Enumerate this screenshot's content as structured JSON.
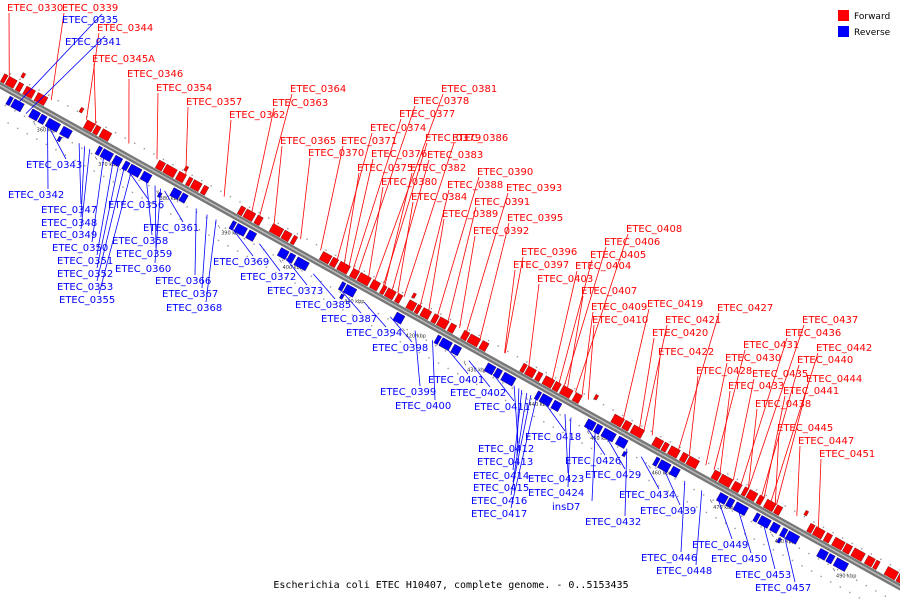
{
  "caption": "Escherichia coli ETEC H10407, complete genome. - 0..5153435",
  "legend": [
    {
      "label": "Forward",
      "color": "#ff0000"
    },
    {
      "label": "Reverse",
      "color": "#0000ff"
    }
  ],
  "colors": {
    "forward": "#ff0000",
    "reverse": "#0000ff",
    "backbone": "#555555"
  },
  "ticks": [
    "360 kbp",
    "370 kbp",
    "380 kbp",
    "390 kbp",
    "400 kbp",
    "410 kbp",
    "420 kbp",
    "430 kbp",
    "440 kbp",
    "450 kbp",
    "460 kbp",
    "470 kbp",
    "480 kbp",
    "490 kbp"
  ],
  "forward_genes": [
    "ETEC_0330",
    "ETEC_0339",
    "ETEC_0344",
    "ETEC_0345A",
    "ETEC_0346",
    "ETEC_0354",
    "ETEC_0357",
    "ETEC_0364",
    "ETEC_0363",
    "ETEC_0362",
    "ETEC_0381",
    "ETEC_0378",
    "ETEC_0377",
    "ETEC_0374",
    "ETEC_0371",
    "ETEC_0379",
    "ETEC_0386",
    "ETEC_0365",
    "ETEC_0370",
    "ETEC_0376",
    "ETEC_0383",
    "ETEC_0375",
    "ETEC_0382",
    "ETEC_0390",
    "ETEC_0380",
    "ETEC_0388",
    "ETEC_0393",
    "ETEC_0384",
    "ETEC_0391",
    "ETEC_0389",
    "ETEC_0395",
    "ETEC_0392",
    "ETEC_0408",
    "ETEC_0406",
    "ETEC_0405",
    "ETEC_0396",
    "ETEC_0397",
    "ETEC_0404",
    "ETEC_0403",
    "ETEC_0407",
    "ETEC_0409",
    "ETEC_0419",
    "ETEC_0427",
    "ETEC_0410",
    "ETEC_0421",
    "ETEC_0437",
    "ETEC_0420",
    "ETEC_0436",
    "ETEC_0431",
    "ETEC_0442",
    "ETEC_0422",
    "ETEC_0430",
    "ETEC_0440",
    "ETEC_0428",
    "ETEC_0435",
    "ETEC_0444",
    "ETEC_0433",
    "ETEC_0441",
    "ETEC_0438",
    "ETEC_0445",
    "ETEC_0447",
    "ETEC_0451"
  ],
  "reverse_genes": [
    "ETEC_0335",
    "ETEC_0341",
    "ETEC_0343",
    "ETEC_0342",
    "ETEC_0347",
    "ETEC_0356",
    "ETEC_0348",
    "ETEC_0349",
    "ETEC_0361",
    "ETEC_0358",
    "ETEC_0350",
    "ETEC_0359",
    "ETEC_0351",
    "ETEC_0360",
    "ETEC_0369",
    "ETEC_0352",
    "ETEC_0366",
    "ETEC_0353",
    "ETEC_0372",
    "ETEC_0367",
    "ETEC_0355",
    "ETEC_0373",
    "ETEC_0368",
    "ETEC_0385",
    "ETEC_0387",
    "ETEC_0394",
    "ETEC_0398",
    "ETEC_0401",
    "ETEC_0399",
    "ETEC_0402",
    "ETEC_0400",
    "ETEC_0411",
    "ETEC_0418",
    "ETEC_0412",
    "ETEC_0426",
    "ETEC_0413",
    "ETEC_0414",
    "ETEC_0423",
    "ETEC_0429",
    "ETEC_0415",
    "ETEC_0424",
    "ETEC_0434",
    "ETEC_0416",
    "insD7",
    "ETEC_0439",
    "ETEC_0417",
    "ETEC_0432",
    "ETEC_0449",
    "ETEC_0446",
    "ETEC_0450",
    "ETEC_0448",
    "ETEC_0453",
    "ETEC_0457"
  ]
}
